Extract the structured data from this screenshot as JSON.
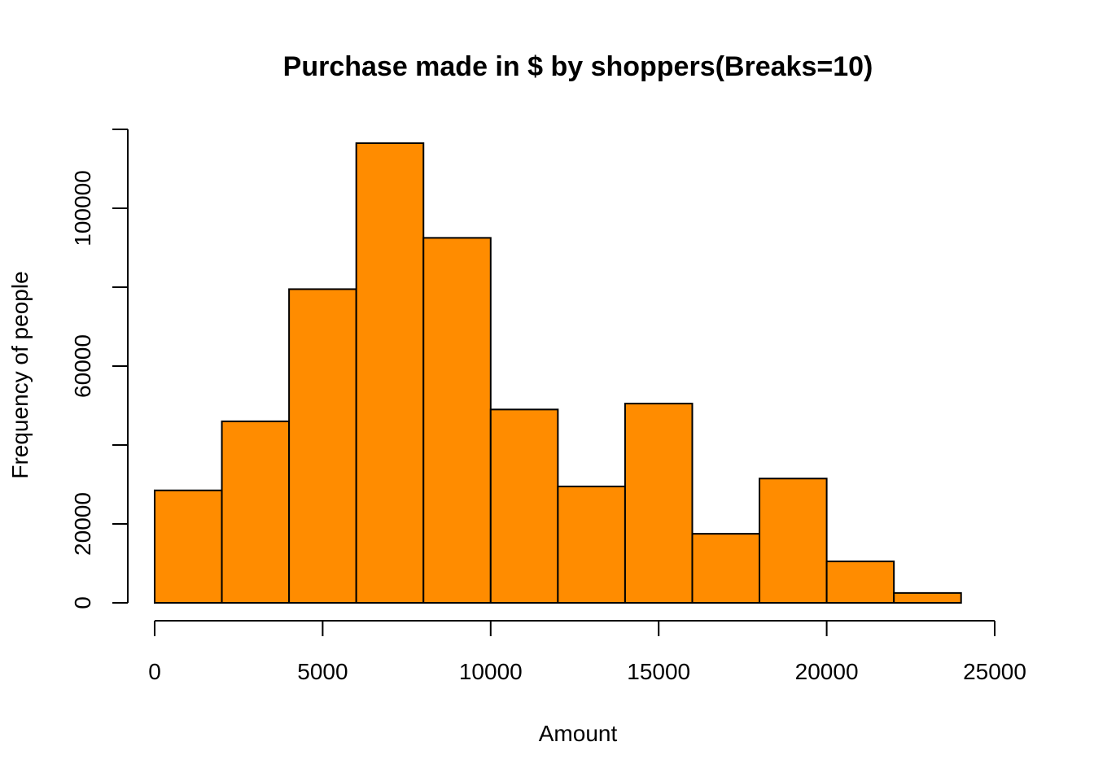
{
  "chart_data": {
    "type": "bar",
    "title": "Purchase made in $ by shoppers(Breaks=10)",
    "xlabel": "Amount",
    "ylabel": "Frequency of people",
    "bin_edges": [
      0,
      2000,
      4000,
      6000,
      8000,
      10000,
      12000,
      14000,
      16000,
      18000,
      20000,
      22000,
      24000
    ],
    "values": [
      28500,
      46000,
      79500,
      116500,
      92500,
      49000,
      29500,
      50500,
      17500,
      31500,
      10500,
      2500
    ],
    "xlim": [
      0,
      25000
    ],
    "ylim": [
      0,
      120000
    ],
    "x_ticks": [
      0,
      5000,
      10000,
      15000,
      20000,
      25000
    ],
    "x_tick_labels": [
      "0",
      "5000",
      "10000",
      "15000",
      "20000",
      "25000"
    ],
    "y_ticks": [
      0,
      20000,
      40000,
      60000,
      80000,
      100000,
      120000
    ],
    "y_tick_labels": [
      "0",
      "20000",
      "",
      "60000",
      "",
      "100000",
      ""
    ],
    "bar_color": "#FF8C00",
    "edge_color": "#000000",
    "grid": false,
    "legend": "none"
  }
}
